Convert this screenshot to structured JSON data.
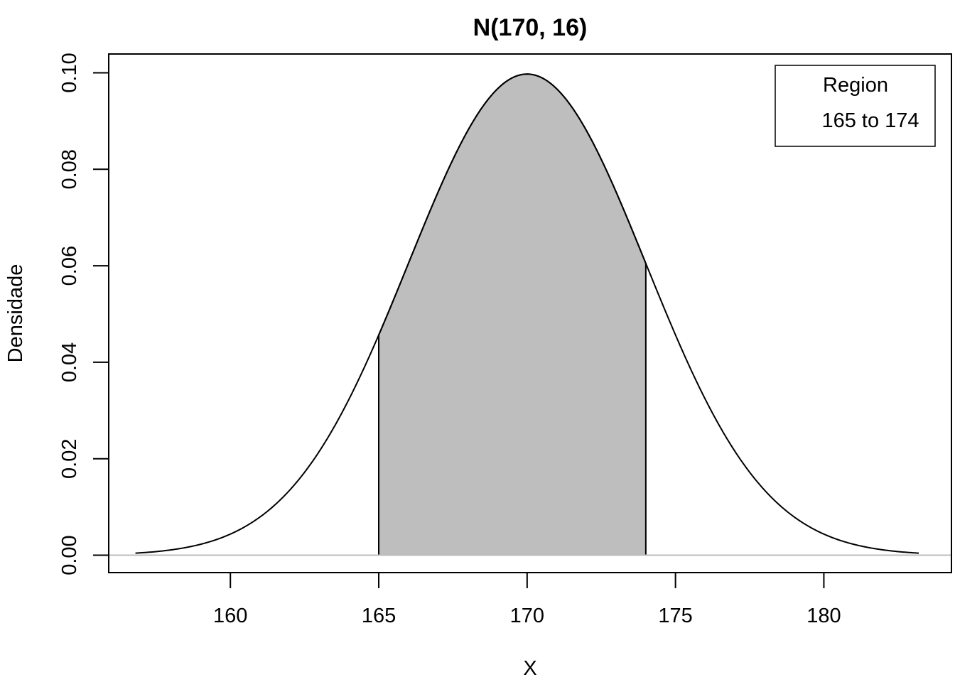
{
  "chart_data": {
    "type": "area",
    "title": "N(170, 16)",
    "xlabel": "X",
    "ylabel": "Densidade",
    "distribution": {
      "mean": 170,
      "variance": 16
    },
    "x_range": [
      156.8,
      183.2
    ],
    "xlim": [
      155.9,
      184.3
    ],
    "ylim": [
      -0.0036,
      0.1039
    ],
    "x_ticks": [
      160,
      165,
      170,
      175,
      180
    ],
    "y_ticks": [
      0.0,
      0.02,
      0.04,
      0.06,
      0.08,
      0.1
    ],
    "x_tick_labels": [
      "160",
      "165",
      "170",
      "175",
      "180"
    ],
    "y_tick_labels": [
      "0.00",
      "0.02",
      "0.04",
      "0.06",
      "0.08",
      "0.10"
    ],
    "shaded_region": {
      "from": 165,
      "to": 174,
      "color": "#bebebe"
    },
    "baseline": {
      "y": 0,
      "color": "#bebebe"
    },
    "curve_color": "#000000",
    "grid": false,
    "legend": {
      "position": "top-right",
      "title": "Region",
      "entries": [
        "165 to 174"
      ]
    }
  }
}
